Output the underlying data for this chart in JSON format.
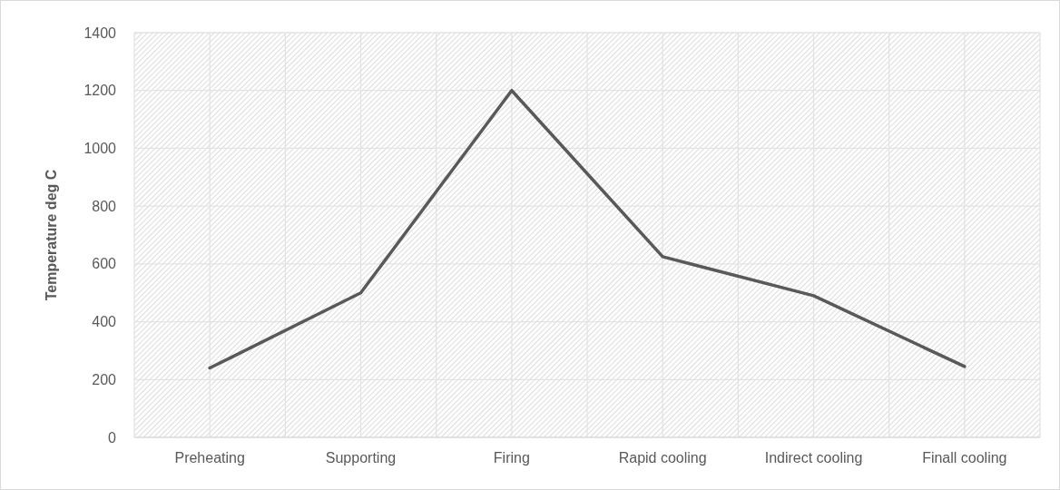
{
  "chart_data": {
    "type": "line",
    "ylabel": "Temperature deg C",
    "categories": [
      "Preheating",
      "Supporting",
      "Firing",
      "Rapid cooling",
      "Indirect cooling",
      "Finall cooling"
    ],
    "series": [
      {
        "color": "#595959",
        "values": [
          240,
          500,
          1200,
          625,
          490,
          245
        ]
      }
    ],
    "ylim": [
      0,
      1400
    ],
    "yticks": [
      0,
      200,
      400,
      600,
      800,
      1000,
      1200,
      1400
    ],
    "grid": true,
    "marker": "none",
    "line_style": "solid"
  }
}
